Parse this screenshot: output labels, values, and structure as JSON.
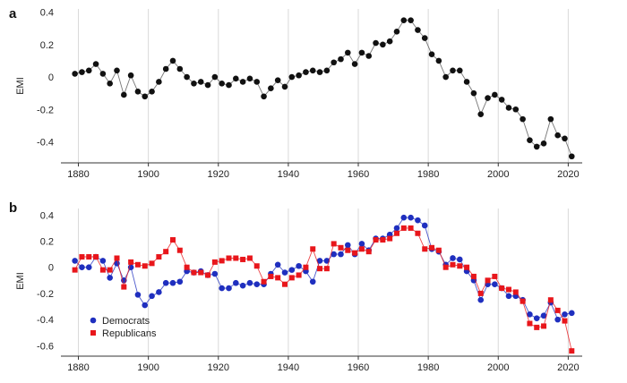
{
  "chart_data": [
    {
      "panel": "a",
      "type": "line",
      "ylabel": "EMI",
      "xlim": [
        1875,
        2024
      ],
      "ylim": [
        -0.53,
        0.42
      ],
      "xticks": [
        1880,
        1900,
        1920,
        1940,
        1960,
        1980,
        2000,
        2020
      ],
      "yticks": [
        -0.4,
        -0.2,
        0,
        0.2,
        0.4
      ],
      "ytick_labels": [
        "-0.4",
        "-0.2",
        "0",
        "0.2",
        "0.4"
      ],
      "grid": "vertical",
      "series": [
        {
          "x": [
            1879,
            1881,
            1883,
            1885,
            1887,
            1889,
            1891,
            1893,
            1895,
            1897,
            1899,
            1901,
            1903,
            1905,
            1907,
            1909,
            1911,
            1913,
            1915,
            1917,
            1919,
            1921,
            1923,
            1925,
            1927,
            1929,
            1931,
            1933,
            1935,
            1937,
            1939,
            1941,
            1943,
            1945,
            1947,
            1949,
            1951,
            1953,
            1955,
            1957,
            1959,
            1961,
            1963,
            1965,
            1967,
            1969,
            1971,
            1973,
            1975,
            1977,
            1979,
            1981,
            1983,
            1985,
            1987,
            1989,
            1991,
            1993,
            1995,
            1997,
            1999,
            2001,
            2003,
            2005,
            2007,
            2009,
            2011,
            2013,
            2015,
            2017,
            2019,
            2021
          ],
          "y": [
            0.02,
            0.03,
            0.04,
            0.08,
            0.02,
            -0.04,
            0.04,
            -0.11,
            0.01,
            -0.09,
            -0.12,
            -0.09,
            -0.03,
            0.05,
            0.1,
            0.05,
            0.0,
            -0.04,
            -0.03,
            -0.05,
            0.0,
            -0.04,
            -0.05,
            -0.01,
            -0.03,
            -0.01,
            -0.03,
            -0.12,
            -0.07,
            -0.02,
            -0.06,
            0.0,
            0.01,
            0.03,
            0.04,
            0.03,
            0.04,
            0.09,
            0.11,
            0.15,
            0.08,
            0.15,
            0.13,
            0.21,
            0.2,
            0.22,
            0.28,
            0.35,
            0.35,
            0.29,
            0.24,
            0.14,
            0.1,
            0.0,
            0.04,
            0.04,
            -0.03,
            -0.1,
            -0.23,
            -0.13,
            -0.11,
            -0.14,
            -0.19,
            -0.2,
            -0.26,
            -0.39,
            -0.43,
            -0.41,
            -0.26,
            -0.36,
            -0.38,
            -0.49
          ]
        }
      ]
    },
    {
      "panel": "b",
      "type": "line",
      "ylabel": "EMI",
      "xlim": [
        1875,
        2024
      ],
      "ylim": [
        -0.68,
        0.45
      ],
      "xticks": [
        1880,
        1900,
        1920,
        1940,
        1960,
        1980,
        2000,
        2020
      ],
      "yticks": [
        -0.6,
        -0.4,
        -0.2,
        0,
        0.2,
        0.4
      ],
      "ytick_labels": [
        "-0.6",
        "-0.4",
        "-0.2",
        "0",
        "0.2",
        "0.4"
      ],
      "grid": "vertical",
      "legend": "bottom-left",
      "series": [
        {
          "name": "Democrats",
          "color": "#1f2fbf",
          "marker": "circle",
          "x": [
            1879,
            1881,
            1883,
            1885,
            1887,
            1889,
            1891,
            1893,
            1895,
            1897,
            1899,
            1901,
            1903,
            1905,
            1907,
            1909,
            1911,
            1913,
            1915,
            1917,
            1919,
            1921,
            1923,
            1925,
            1927,
            1929,
            1931,
            1933,
            1935,
            1937,
            1939,
            1941,
            1943,
            1945,
            1947,
            1949,
            1951,
            1953,
            1955,
            1957,
            1959,
            1961,
            1963,
            1965,
            1967,
            1969,
            1971,
            1973,
            1975,
            1977,
            1979,
            1981,
            1983,
            1985,
            1987,
            1989,
            1991,
            1993,
            1995,
            1997,
            1999,
            2001,
            2003,
            2005,
            2007,
            2009,
            2011,
            2013,
            2015,
            2017,
            2019,
            2021
          ],
          "y": [
            0.05,
            0.0,
            0.0,
            0.08,
            0.05,
            -0.08,
            0.03,
            -0.1,
            0.0,
            -0.21,
            -0.29,
            -0.22,
            -0.19,
            -0.12,
            -0.12,
            -0.11,
            -0.03,
            -0.04,
            -0.03,
            -0.06,
            -0.05,
            -0.16,
            -0.16,
            -0.12,
            -0.14,
            -0.12,
            -0.13,
            -0.13,
            -0.05,
            0.02,
            -0.04,
            -0.02,
            0.01,
            -0.03,
            -0.11,
            0.05,
            0.05,
            0.1,
            0.1,
            0.17,
            0.1,
            0.18,
            0.13,
            0.22,
            0.22,
            0.25,
            0.3,
            0.38,
            0.38,
            0.36,
            0.32,
            0.14,
            0.12,
            0.02,
            0.07,
            0.06,
            -0.03,
            -0.1,
            -0.25,
            -0.13,
            -0.13,
            -0.16,
            -0.22,
            -0.22,
            -0.25,
            -0.36,
            -0.39,
            -0.37,
            -0.27,
            -0.4,
            -0.36,
            -0.35
          ]
        },
        {
          "name": "Republicans",
          "color": "#e8161b",
          "marker": "square",
          "x": [
            1879,
            1881,
            1883,
            1885,
            1887,
            1889,
            1891,
            1893,
            1895,
            1897,
            1899,
            1901,
            1903,
            1905,
            1907,
            1909,
            1911,
            1913,
            1915,
            1917,
            1919,
            1921,
            1923,
            1925,
            1927,
            1929,
            1931,
            1933,
            1935,
            1937,
            1939,
            1941,
            1943,
            1945,
            1947,
            1949,
            1951,
            1953,
            1955,
            1957,
            1959,
            1961,
            1963,
            1965,
            1967,
            1969,
            1971,
            1973,
            1975,
            1977,
            1979,
            1981,
            1983,
            1985,
            1987,
            1989,
            1991,
            1993,
            1995,
            1997,
            1999,
            2001,
            2003,
            2005,
            2007,
            2009,
            2011,
            2013,
            2015,
            2017,
            2019,
            2021
          ],
          "y": [
            -0.02,
            0.08,
            0.08,
            0.08,
            -0.02,
            -0.02,
            0.07,
            -0.15,
            0.04,
            0.02,
            0.01,
            0.03,
            0.08,
            0.12,
            0.21,
            0.13,
            0.0,
            -0.04,
            -0.04,
            -0.06,
            0.04,
            0.05,
            0.07,
            0.07,
            0.06,
            0.07,
            0.01,
            -0.11,
            -0.07,
            -0.08,
            -0.13,
            -0.08,
            -0.06,
            0.0,
            0.14,
            -0.01,
            -0.01,
            0.18,
            0.15,
            0.13,
            0.11,
            0.14,
            0.12,
            0.21,
            0.21,
            0.22,
            0.26,
            0.3,
            0.3,
            0.26,
            0.14,
            0.15,
            0.13,
            0.0,
            0.02,
            0.01,
            0.0,
            -0.07,
            -0.2,
            -0.1,
            -0.07,
            -0.16,
            -0.17,
            -0.19,
            -0.26,
            -0.43,
            -0.46,
            -0.45,
            -0.25,
            -0.33,
            -0.41,
            -0.64
          ]
        }
      ]
    }
  ]
}
